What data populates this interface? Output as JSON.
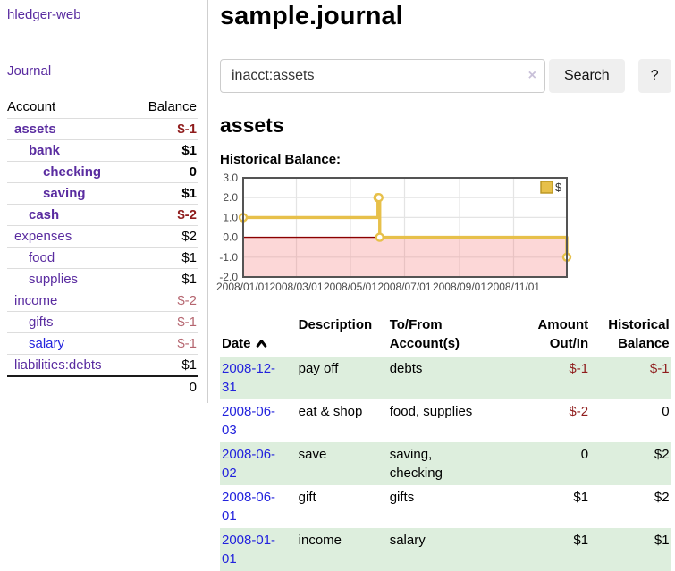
{
  "colors": {
    "link_purple": "#5a2ca0",
    "link_blue": "#2323dd",
    "neg_strong": "#8f1c1c",
    "neg_soft": "#b5656f",
    "stripe_green": "#ddeedd",
    "chart_gold": "#e7c04a",
    "chart_gold_dark": "#b8941f",
    "zero_line": "#8b0000",
    "chart_border": "#545454",
    "grid_line": "#e4e4e4",
    "neg_region": "rgba(246,112,112,0.28)",
    "tick_text": "#4a4a4a",
    "button_bg": "#efefef",
    "input_border": "#cccccc",
    "divider": "#cfcfcf",
    "row_border": "#dddddd",
    "clear_icon": "#c9c1d9"
  },
  "app": {
    "title": "hledger-web",
    "journal_link": "Journal"
  },
  "sidebar": {
    "header": {
      "account": "Account",
      "balance": "Balance"
    },
    "accounts": [
      {
        "name": "assets",
        "balance": "$-1",
        "depth": 1,
        "inacct": true,
        "link": "purple"
      },
      {
        "name": "bank",
        "balance": "$1",
        "depth": 2,
        "inacct": true,
        "link": "purple"
      },
      {
        "name": "checking",
        "balance": "0",
        "depth": 3,
        "inacct": true,
        "link": "purple"
      },
      {
        "name": "saving",
        "balance": "$1",
        "depth": 3,
        "inacct": true,
        "link": "purple"
      },
      {
        "name": "cash",
        "balance": "$-2",
        "depth": 2,
        "inacct": true,
        "link": "purple"
      },
      {
        "name": "expenses",
        "balance": "$2",
        "depth": 1,
        "inacct": false,
        "link": "purple"
      },
      {
        "name": "food",
        "balance": "$1",
        "depth": 2,
        "inacct": false,
        "link": "purple"
      },
      {
        "name": "supplies",
        "balance": "$1",
        "depth": 2,
        "inacct": false,
        "link": "purple"
      },
      {
        "name": "income",
        "balance": "$-2",
        "depth": 1,
        "inacct": false,
        "link": "purple"
      },
      {
        "name": "gifts",
        "balance": "$-1",
        "depth": 2,
        "inacct": false,
        "link": "purple"
      },
      {
        "name": "salary",
        "balance": "$-1",
        "depth": 2,
        "inacct": false,
        "link": "blue"
      },
      {
        "name": "liabilities:debts",
        "balance": "$1",
        "depth": 1,
        "inacct": false,
        "link": "purple"
      }
    ],
    "total": "0"
  },
  "main": {
    "title": "sample.journal",
    "search": {
      "value": "inacct:assets",
      "button_label": "Search",
      "help_label": "?",
      "clear_glyph": "×"
    },
    "account_heading": "assets",
    "chart_label": "Historical Balance:"
  },
  "chart_data": {
    "type": "line-step",
    "title": "Historical Balance",
    "legend": "$",
    "ylim": [
      -2,
      3
    ],
    "yticks": [
      3.0,
      2.0,
      1.0,
      0.0,
      -1.0,
      -2.0
    ],
    "xrange": [
      "2008-01-01",
      "2008-12-31"
    ],
    "xticks": [
      {
        "label": "2008/01/01",
        "date": "2008-01-01"
      },
      {
        "label": "2008/03/01",
        "date": "2008-03-01"
      },
      {
        "label": "2008/05/01",
        "date": "2008-05-01"
      },
      {
        "label": "2008/07/01",
        "date": "2008-07-01"
      },
      {
        "label": "2008/09/01",
        "date": "2008-09-01"
      },
      {
        "label": "2008/11/01",
        "date": "2008-11-01"
      }
    ],
    "grid_x_dates": [
      "2008-03-01",
      "2008-05-01",
      "2008-07-01",
      "2008-09-01",
      "2008-11-01"
    ],
    "series": [
      {
        "name": "$",
        "points": [
          [
            "2008-01-01",
            1
          ],
          [
            "2008-06-01",
            2
          ],
          [
            "2008-06-02",
            2
          ],
          [
            "2008-06-03",
            0
          ],
          [
            "2008-12-31",
            -1
          ]
        ]
      }
    ]
  },
  "register": {
    "headers": [
      "Date",
      "Description",
      "To/From\nAccount(s)",
      "Amount\nOut/In",
      "Historical\nBalance"
    ],
    "rows": [
      {
        "date": "2008-12-31",
        "description": "pay off",
        "accounts": "debts",
        "amount": "$-1",
        "balance": "$-1"
      },
      {
        "date": "2008-06-03",
        "description": "eat & shop",
        "accounts": "food, supplies",
        "amount": "$-2",
        "balance": "0"
      },
      {
        "date": "2008-06-02",
        "description": "save",
        "accounts": "saving,\nchecking",
        "amount": "0",
        "balance": "$2"
      },
      {
        "date": "2008-06-01",
        "description": "gift",
        "accounts": "gifts",
        "amount": "$1",
        "balance": "$2"
      },
      {
        "date": "2008-01-01",
        "description": "income",
        "accounts": "salary",
        "amount": "$1",
        "balance": "$1"
      }
    ]
  }
}
